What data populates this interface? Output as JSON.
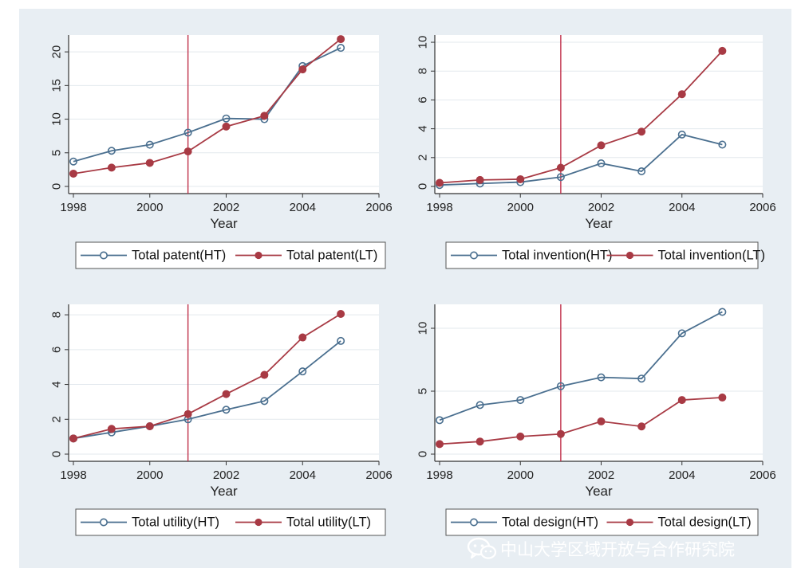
{
  "watermark": {
    "text": "中山大学区域开放与合作研究院",
    "icon": "wechat-icon"
  },
  "colors": {
    "panel_bg": "#e8eef3",
    "plot_bg": "#ffffff",
    "ht": "#4a6f8f",
    "lt": "#a83a44",
    "vline": "#c0304a",
    "grid": "#e3e9ee",
    "axis": "#333333"
  },
  "chart_data": [
    {
      "type": "line",
      "xlabel": "Year",
      "xticks": [
        1998,
        2000,
        2002,
        2004,
        2006
      ],
      "yticks": [
        0,
        5,
        10,
        15,
        20
      ],
      "xlim": [
        1998,
        2006
      ],
      "ylim": [
        0,
        22.5
      ],
      "vline": 2001,
      "grid": true,
      "legend_position": "bottom",
      "x": [
        1998,
        1999,
        2000,
        2001,
        2002,
        2003,
        2004,
        2005
      ],
      "series": [
        {
          "name": "Total patent(HT)",
          "marker": "hollow",
          "values": [
            3.7,
            5.3,
            6.2,
            8.0,
            10.1,
            10.0,
            17.9,
            20.6
          ]
        },
        {
          "name": "Total patent(LT)",
          "marker": "filled",
          "values": [
            1.9,
            2.8,
            3.5,
            5.2,
            8.9,
            10.5,
            17.4,
            21.9
          ]
        }
      ]
    },
    {
      "type": "line",
      "xlabel": "Year",
      "xticks": [
        1998,
        2000,
        2002,
        2004,
        2006
      ],
      "yticks": [
        0,
        2,
        4,
        6,
        8,
        10
      ],
      "xlim": [
        1998,
        2006
      ],
      "ylim": [
        0,
        10.5
      ],
      "vline": 2001,
      "grid": true,
      "legend_position": "bottom",
      "x": [
        1998,
        1999,
        2000,
        2001,
        2002,
        2003,
        2004,
        2005
      ],
      "series": [
        {
          "name": "Total invention(HT)",
          "marker": "hollow",
          "values": [
            0.1,
            0.2,
            0.3,
            0.65,
            1.6,
            1.05,
            3.6,
            2.9
          ]
        },
        {
          "name": "Total invention(LT)",
          "marker": "filled",
          "values": [
            0.25,
            0.45,
            0.5,
            1.3,
            2.85,
            3.8,
            6.4,
            9.4
          ]
        }
      ]
    },
    {
      "type": "line",
      "xlabel": "Year",
      "xticks": [
        1998,
        2000,
        2002,
        2004,
        2006
      ],
      "yticks": [
        0,
        2,
        4,
        6,
        8
      ],
      "xlim": [
        1998,
        2006
      ],
      "ylim": [
        0,
        8.6
      ],
      "vline": 2001,
      "grid": true,
      "legend_position": "bottom",
      "x": [
        1998,
        1999,
        2000,
        2001,
        2002,
        2003,
        2004,
        2005
      ],
      "series": [
        {
          "name": "Total utility(HT)",
          "marker": "hollow",
          "values": [
            0.9,
            1.25,
            1.6,
            2.0,
            2.55,
            3.05,
            4.75,
            6.5
          ]
        },
        {
          "name": "Total utility(LT)",
          "marker": "filled",
          "values": [
            0.9,
            1.45,
            1.6,
            2.3,
            3.45,
            4.55,
            6.7,
            8.05
          ]
        }
      ]
    },
    {
      "type": "line",
      "xlabel": "Year",
      "xticks": [
        1998,
        2000,
        2002,
        2004,
        2006
      ],
      "yticks": [
        0,
        5,
        10
      ],
      "xlim": [
        1998,
        2006
      ],
      "ylim": [
        0,
        11.9
      ],
      "vline": 2001,
      "grid": true,
      "legend_position": "bottom",
      "x": [
        1998,
        1999,
        2000,
        2001,
        2002,
        2003,
        2004,
        2005
      ],
      "series": [
        {
          "name": "Total design(HT)",
          "marker": "hollow",
          "values": [
            2.7,
            3.9,
            4.3,
            5.4,
            6.1,
            6.0,
            9.6,
            11.3
          ]
        },
        {
          "name": "Total design(LT)",
          "marker": "filled",
          "values": [
            0.8,
            1.0,
            1.4,
            1.6,
            2.6,
            2.2,
            4.3,
            4.5
          ]
        }
      ]
    }
  ]
}
